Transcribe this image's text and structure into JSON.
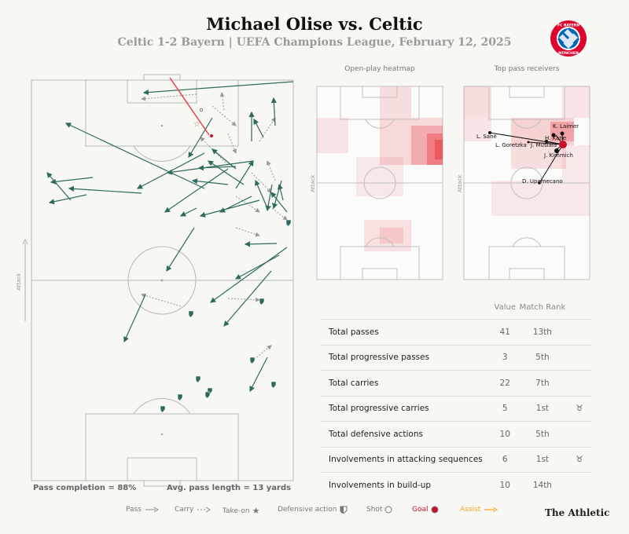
{
  "header": {
    "title": "Michael Olise vs. Celtic",
    "subtitle": "Celtic 1-2 Bayern  | UEFA Champions League, February 12, 2025"
  },
  "badge": {
    "text": "FC BAYERN MÜNCHEN",
    "color": "#dc052d"
  },
  "main_pitch": {
    "attack_label": "Attack",
    "pass_completion": "Pass completion = 88%",
    "avg_pass_length": "Avg. pass length = 13 yards"
  },
  "heatmap": {
    "title": "Open-play heatmap",
    "attack_label": "Attack"
  },
  "receivers": {
    "title": "Top pass receivers",
    "attack_label": "Attack",
    "players": [
      {
        "name": "K. Laimer"
      },
      {
        "name": "L. Sané"
      },
      {
        "name": "H. Kane"
      },
      {
        "name": "L. Goretzka"
      },
      {
        "name": "J. Musiala"
      },
      {
        "name": "J. Kimmich"
      },
      {
        "name": "D. Upamecano"
      }
    ]
  },
  "stats_table": {
    "headers": [
      "",
      "Value",
      "Match Rank",
      ""
    ],
    "rows": [
      {
        "label": "Total passes",
        "value": "41",
        "rank": "13th",
        "icon": ""
      },
      {
        "label": "Total progressive passes",
        "value": "3",
        "rank": "5th",
        "icon": ""
      },
      {
        "label": "Total carries",
        "value": "22",
        "rank": "7th",
        "icon": ""
      },
      {
        "label": "Total progressive carries",
        "value": "5",
        "rank": "1st",
        "icon": "♉"
      },
      {
        "label": "Total defensive actions",
        "value": "10",
        "rank": "5th",
        "icon": ""
      },
      {
        "label": "Involvements in attacking sequences",
        "value": "6",
        "rank": "1st",
        "icon": "♉"
      },
      {
        "label": "Involvements in build-up",
        "value": "10",
        "rank": "14th",
        "icon": ""
      }
    ]
  },
  "legend": {
    "pass": "Pass",
    "carry": "Carry",
    "takeon": "Take-on",
    "defensive": "Defensive action",
    "shot": "Shot",
    "goal": "Goal",
    "assist": "Assist"
  },
  "colors": {
    "pass": "#2f6b5d",
    "carry": "#9a9a9a",
    "goal": "#c8102e",
    "assist": "#f5a623",
    "heat": "#e8424a"
  },
  "brand": "The Athletic"
}
